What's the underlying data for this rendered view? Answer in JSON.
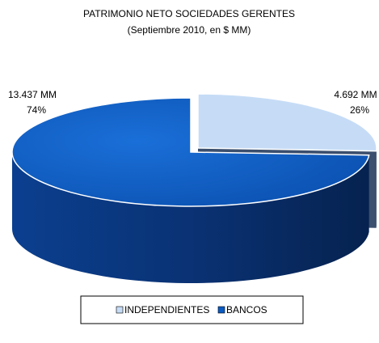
{
  "chart_data": {
    "type": "pie",
    "title": "PATRIMONIO NETO SOCIEDADES GERENTES",
    "subtitle": "(Septiembre 2010, en $ MM)",
    "categories": [
      "INDEPENDIENTES",
      "BANCOS"
    ],
    "values": [
      4692,
      13437
    ],
    "value_labels": [
      "4.692 MM",
      "13.437 MM"
    ],
    "percents": [
      26,
      74
    ],
    "percent_labels": [
      "26%",
      "74%"
    ],
    "colors": [
      "#c6dcf6",
      "#0a5bc4"
    ],
    "legend": "bottom"
  }
}
